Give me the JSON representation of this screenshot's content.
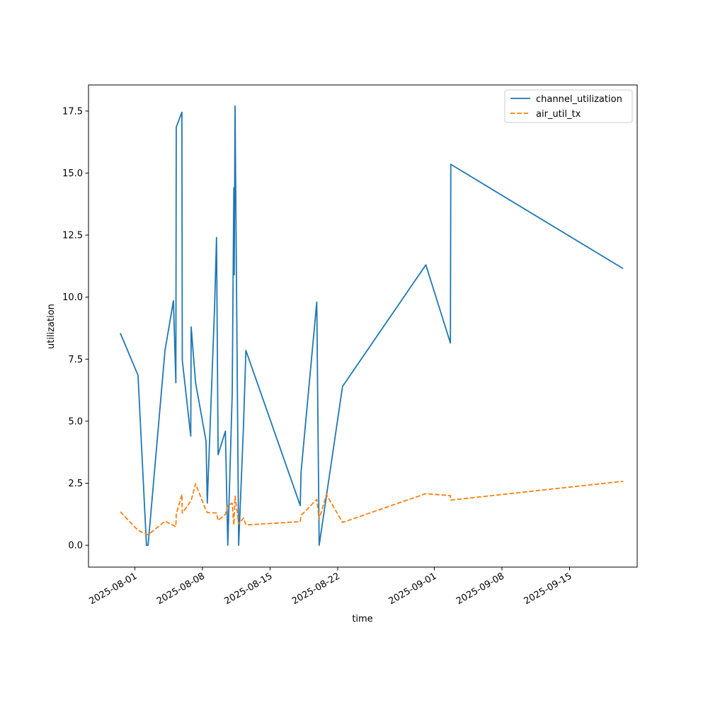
{
  "chart_data": {
    "type": "line",
    "title": "",
    "xlabel": "time",
    "ylabel": "utilization",
    "x_axis_type": "date",
    "xlim": [
      "2025-07-27T05:00",
      "2025-09-22T00:00"
    ],
    "ylim": [
      -0.88,
      18.55
    ],
    "grid": false,
    "legend_position": "top-right",
    "x_ticks": [
      "2025-08-01",
      "2025-08-08",
      "2025-08-15",
      "2025-08-22",
      "2025-09-01",
      "2025-09-08",
      "2025-09-15"
    ],
    "y_ticks": [
      0.0,
      2.5,
      5.0,
      7.5,
      10.0,
      12.5,
      15.0,
      17.5
    ],
    "y_tick_labels": [
      "0.0",
      "2.5",
      "5.0",
      "7.5",
      "10.0",
      "12.5",
      "15.0",
      "17.5"
    ],
    "series": [
      {
        "name": "channel_utilization",
        "color": "#1f77b4",
        "dash": "solid",
        "points": [
          [
            "2025-07-30T12:00",
            8.55
          ],
          [
            "2025-08-01T08:00",
            6.85
          ],
          [
            "2025-08-02T05:00",
            0.0
          ],
          [
            "2025-08-02T09:00",
            0.0
          ],
          [
            "2025-08-04T03:00",
            7.85
          ],
          [
            "2025-08-05T00:00",
            9.85
          ],
          [
            "2025-08-05T06:00",
            6.55
          ],
          [
            "2025-08-05T07:00",
            16.85
          ],
          [
            "2025-08-05T21:00",
            17.45
          ],
          [
            "2025-08-05T22:00",
            7.45
          ],
          [
            "2025-08-06T19:00",
            4.4
          ],
          [
            "2025-08-06T20:00",
            8.8
          ],
          [
            "2025-08-07T07:00",
            6.55
          ],
          [
            "2025-08-08T09:00",
            4.2
          ],
          [
            "2025-08-08T12:00",
            1.7
          ],
          [
            "2025-08-09T06:00",
            9.5
          ],
          [
            "2025-08-09T11:00",
            12.4
          ],
          [
            "2025-08-09T15:00",
            3.65
          ],
          [
            "2025-08-10T09:00",
            4.6
          ],
          [
            "2025-08-10T15:00",
            0.0
          ],
          [
            "2025-08-11T02:00",
            6.1
          ],
          [
            "2025-08-11T06:00",
            14.4
          ],
          [
            "2025-08-11T07:00",
            10.9
          ],
          [
            "2025-08-11T09:00",
            17.7
          ],
          [
            "2025-08-11T18:00",
            0.0
          ],
          [
            "2025-08-12T06:00",
            4.8
          ],
          [
            "2025-08-12T12:00",
            7.85
          ],
          [
            "2025-08-18T03:00",
            1.6
          ],
          [
            "2025-08-18T05:00",
            2.95
          ],
          [
            "2025-08-19T20:00",
            9.8
          ],
          [
            "2025-08-20T02:00",
            0.0
          ],
          [
            "2025-08-22T12:00",
            6.4
          ],
          [
            "2025-08-31T03:00",
            11.3
          ],
          [
            "2025-09-02T16:00",
            8.15
          ],
          [
            "2025-09-02T17:00",
            15.35
          ],
          [
            "2025-09-20T13:00",
            11.15
          ]
        ]
      },
      {
        "name": "air_util_tx",
        "color": "#ff7f0e",
        "dash": "dashed",
        "points": [
          [
            "2025-07-30T12:00",
            1.35
          ],
          [
            "2025-08-01T08:00",
            0.6
          ],
          [
            "2025-08-02T09:00",
            0.42
          ],
          [
            "2025-08-04T03:00",
            0.97
          ],
          [
            "2025-08-05T06:00",
            0.75
          ],
          [
            "2025-08-05T07:00",
            1.25
          ],
          [
            "2025-08-05T21:00",
            2.05
          ],
          [
            "2025-08-05T22:00",
            1.3
          ],
          [
            "2025-08-06T20:00",
            1.8
          ],
          [
            "2025-08-07T07:00",
            2.48
          ],
          [
            "2025-08-08T09:00",
            1.4
          ],
          [
            "2025-08-08T12:00",
            1.32
          ],
          [
            "2025-08-09T11:00",
            1.3
          ],
          [
            "2025-08-09T15:00",
            1.0
          ],
          [
            "2025-08-10T09:00",
            1.25
          ],
          [
            "2025-08-10T15:00",
            1.6
          ],
          [
            "2025-08-11T02:00",
            1.7
          ],
          [
            "2025-08-11T06:00",
            0.82
          ],
          [
            "2025-08-11T09:00",
            1.98
          ],
          [
            "2025-08-11T18:00",
            0.85
          ],
          [
            "2025-08-12T06:00",
            1.1
          ],
          [
            "2025-08-12T12:00",
            0.82
          ],
          [
            "2025-08-18T03:00",
            0.95
          ],
          [
            "2025-08-18T05:00",
            1.2
          ],
          [
            "2025-08-19T20:00",
            1.85
          ],
          [
            "2025-08-20T02:00",
            1.05
          ],
          [
            "2025-08-20T20:00",
            2.05
          ],
          [
            "2025-08-22T12:00",
            0.92
          ],
          [
            "2025-08-31T03:00",
            2.08
          ],
          [
            "2025-09-02T16:00",
            2.0
          ],
          [
            "2025-09-02T17:00",
            1.82
          ],
          [
            "2025-09-20T13:00",
            2.58
          ]
        ]
      }
    ]
  }
}
